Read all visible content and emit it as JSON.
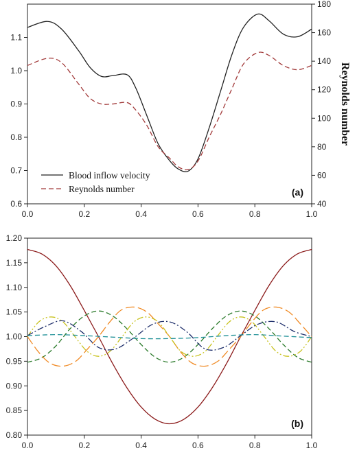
{
  "chart_data": [
    {
      "type": "line",
      "panel_label": "(a)",
      "xlim": [
        0,
        1
      ],
      "ylim": [
        0.6,
        1.2
      ],
      "y2lim": [
        40,
        180
      ],
      "y2label": "Reynolds number",
      "x_ticks": [
        "0.0",
        "0.2",
        "0.4",
        "0.6",
        "0.8",
        "1.0"
      ],
      "y_ticks": [
        "0.6",
        "0.7",
        "0.8",
        "0.9",
        "1.0",
        "1.1"
      ],
      "y2_ticks": [
        "40",
        "60",
        "80",
        "100",
        "120",
        "140",
        "160",
        "180"
      ],
      "legend_position": "bottom-left",
      "series": [
        {
          "name": "Blood inflow velocity",
          "axis": "left",
          "style": "solid",
          "color": "#222222",
          "x": [
            0,
            0.07,
            0.12,
            0.18,
            0.22,
            0.26,
            0.3,
            0.35,
            0.38,
            0.42,
            0.46,
            0.5,
            0.53,
            0.565,
            0.6,
            0.64,
            0.68,
            0.72,
            0.76,
            0.81,
            0.85,
            0.9,
            0.95,
            1.0
          ],
          "values": [
            1.13,
            1.148,
            1.125,
            1.06,
            1.01,
            0.983,
            0.985,
            0.988,
            0.95,
            0.865,
            0.78,
            0.73,
            0.705,
            0.698,
            0.735,
            0.83,
            0.94,
            1.05,
            1.13,
            1.17,
            1.15,
            1.11,
            1.102,
            1.125
          ]
        },
        {
          "name": "Reynolds number",
          "axis": "right",
          "style": "dashed",
          "color": "#a23a3a",
          "x": [
            0,
            0.07,
            0.12,
            0.18,
            0.22,
            0.26,
            0.3,
            0.35,
            0.38,
            0.42,
            0.46,
            0.5,
            0.53,
            0.565,
            0.6,
            0.64,
            0.68,
            0.72,
            0.76,
            0.81,
            0.85,
            0.9,
            0.95,
            1.0
          ],
          "values": [
            137,
            142,
            139,
            124,
            114,
            110,
            110,
            111,
            106,
            95,
            80,
            72,
            66,
            64,
            70,
            87,
            103,
            121,
            138,
            146,
            144,
            137,
            134,
            137
          ]
        }
      ]
    },
    {
      "type": "line",
      "panel_label": "(b)",
      "xlim": [
        0,
        1
      ],
      "ylim": [
        0.8,
        1.2
      ],
      "x_ticks": [
        "0.0",
        "0.2",
        "0.4",
        "0.6",
        "0.8",
        "1.0"
      ],
      "y_ticks": [
        "0.80",
        "0.85",
        "0.90",
        "0.95",
        "1.00",
        "1.05",
        "1.10",
        "1.15",
        "1.20"
      ],
      "series": [
        {
          "style": "solid",
          "color": "#8b1a1a",
          "x": [
            0,
            0.05,
            0.1,
            0.15,
            0.2,
            0.25,
            0.3,
            0.35,
            0.4,
            0.45,
            0.5,
            0.55,
            0.6,
            0.65,
            0.7,
            0.75,
            0.8,
            0.85,
            0.9,
            0.95,
            1.0
          ],
          "values": [
            1.177,
            1.168,
            1.144,
            1.104,
            1.053,
            1.0,
            0.945,
            0.896,
            0.857,
            0.832,
            0.823,
            0.832,
            0.857,
            0.896,
            0.945,
            1.0,
            1.053,
            1.104,
            1.144,
            1.168,
            1.177
          ]
        },
        {
          "style": "dashed",
          "color": "#2a7a2a",
          "x": [
            0,
            0.05,
            0.1,
            0.15,
            0.2,
            0.25,
            0.3,
            0.35,
            0.4,
            0.45,
            0.5,
            0.55,
            0.6,
            0.65,
            0.7,
            0.75,
            0.8,
            0.85,
            0.9,
            0.95,
            1.0
          ],
          "values": [
            0.948,
            0.957,
            0.981,
            1.016,
            1.042,
            1.052,
            1.042,
            1.016,
            0.984,
            0.958,
            0.948,
            0.958,
            0.984,
            1.016,
            1.042,
            1.052,
            1.042,
            1.016,
            0.984,
            0.958,
            0.948
          ]
        },
        {
          "style": "long-dash",
          "color": "#f08a24",
          "x": [
            0,
            0.04,
            0.08,
            0.125,
            0.17,
            0.21,
            0.25,
            0.29,
            0.33,
            0.375,
            0.42,
            0.46,
            0.5,
            0.54,
            0.58,
            0.625,
            0.67,
            0.71,
            0.75,
            0.79,
            0.83,
            0.875,
            0.92,
            0.96,
            1.0
          ],
          "values": [
            1.0,
            0.968,
            0.946,
            0.94,
            0.95,
            0.974,
            1.0,
            1.03,
            1.054,
            1.06,
            1.05,
            1.026,
            1.0,
            0.968,
            0.946,
            0.94,
            0.95,
            0.974,
            1.0,
            1.03,
            1.054,
            1.06,
            1.05,
            1.026,
            1.0
          ]
        },
        {
          "style": "dash-dot-dot",
          "color": "#c8c21e",
          "x": [
            0,
            0.04,
            0.083,
            0.125,
            0.167,
            0.21,
            0.25,
            0.29,
            0.333,
            0.375,
            0.417,
            0.46,
            0.5,
            0.54,
            0.583,
            0.625,
            0.667,
            0.71,
            0.75,
            0.79,
            0.833,
            0.875,
            0.917,
            0.96,
            1.0
          ],
          "values": [
            1.0,
            1.03,
            1.04,
            1.03,
            1.0,
            0.97,
            0.96,
            0.97,
            1.0,
            1.03,
            1.04,
            1.03,
            1.0,
            0.97,
            0.96,
            0.97,
            1.0,
            1.03,
            1.04,
            1.03,
            1.0,
            0.97,
            0.96,
            0.97,
            1.0
          ]
        },
        {
          "style": "dash-dot",
          "color": "#1f2f6b",
          "x": [
            0,
            0.06,
            0.125,
            0.19,
            0.25,
            0.31,
            0.375,
            0.44,
            0.5,
            0.56,
            0.625,
            0.69,
            0.75,
            0.81,
            0.875,
            0.94,
            1.0
          ],
          "values": [
            1.002,
            1.02,
            1.032,
            1.01,
            0.978,
            0.975,
            0.998,
            1.025,
            1.03,
            1.01,
            0.975,
            0.978,
            1.002,
            1.025,
            1.03,
            1.01,
            1.0
          ]
        },
        {
          "style": "dashed",
          "color": "#1e8f96",
          "x": [
            0,
            0.1,
            0.2,
            0.3,
            0.4,
            0.5,
            0.6,
            0.7,
            0.8,
            0.9,
            1.0
          ],
          "values": [
            1.002,
            1.004,
            1.002,
            0.999,
            0.996,
            0.996,
            0.998,
            1.002,
            1.004,
            1.001,
            0.998
          ]
        }
      ]
    }
  ]
}
